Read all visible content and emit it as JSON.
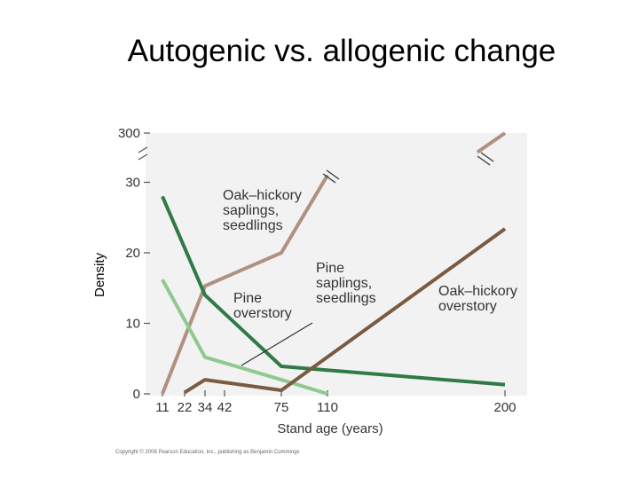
{
  "slide": {
    "title": "Autogenic vs. allogenic change",
    "copyright": "Copyright © 2008 Pearson Education, Inc., publishing as Benjamin Cummings"
  },
  "chart_data": {
    "type": "line",
    "title": "Autogenic vs. allogenic change",
    "xlabel": "Stand age (years)",
    "ylabel": "Density",
    "x_ticks": [
      11,
      22,
      34,
      42,
      75,
      110,
      200
    ],
    "y_ticks": [
      0,
      10,
      20,
      30,
      300
    ],
    "y_axis_break": "between 30 and 300",
    "grid": false,
    "background_color": "#f2f2f2",
    "series": [
      {
        "name": "Oak–hickory saplings, seedlings",
        "label_lines": [
          "Oak–hickory",
          "saplings,",
          "seedlings"
        ],
        "color": "#b09080",
        "points": [
          [
            11,
            0
          ],
          [
            34,
            15.3
          ],
          [
            75,
            20
          ],
          [
            110,
            31
          ]
        ],
        "continuation": [
          [
            186,
            284
          ],
          [
            200,
            300
          ]
        ]
      },
      {
        "name": "Pine saplings, seedlings",
        "label_lines": [
          "Pine",
          "saplings,",
          "seedlings"
        ],
        "color": "#8ec98e",
        "points": [
          [
            11,
            16.2
          ],
          [
            34,
            5.2
          ],
          [
            75,
            2
          ],
          [
            110,
            0
          ]
        ]
      },
      {
        "name": "Pine overstory",
        "label_lines": [
          "Pine",
          "overstory"
        ],
        "color": "#2f7a45",
        "points": [
          [
            11,
            28
          ],
          [
            34,
            14
          ],
          [
            75,
            3.9
          ],
          [
            200,
            1.3
          ]
        ]
      },
      {
        "name": "Oak–hickory overstory",
        "label_lines": [
          "Oak–hickory",
          "overstory"
        ],
        "color": "#7a5a40",
        "points": [
          [
            22,
            0.2
          ],
          [
            34,
            2
          ],
          [
            75,
            0.5
          ],
          [
            200,
            23.4
          ]
        ]
      }
    ]
  }
}
